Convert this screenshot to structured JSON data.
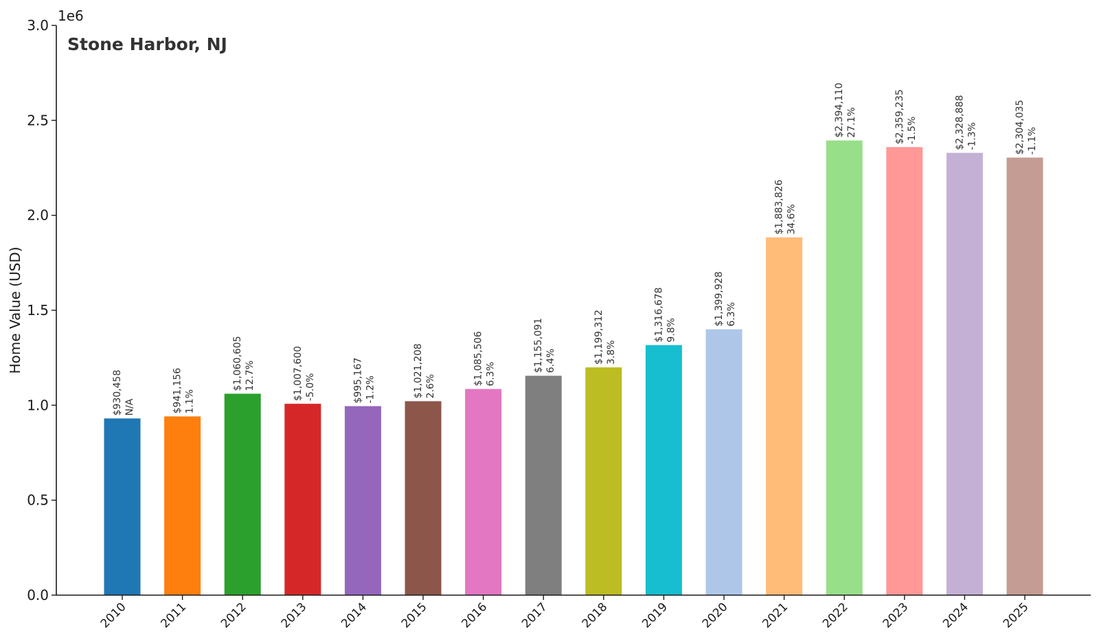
{
  "chart_data": {
    "type": "bar",
    "title": "Stone Harbor, NJ",
    "ylabel": "Home Value (USD)",
    "xlabel": "",
    "y_offset_label": "1e6",
    "ylim": [
      0,
      3000000
    ],
    "y_ticks": [
      0,
      500000,
      1000000,
      1500000,
      2000000,
      2500000,
      3000000
    ],
    "y_tick_labels": [
      "0.0",
      "0.5",
      "1.0",
      "1.5",
      "2.0",
      "2.5",
      "3.0"
    ],
    "grid": false,
    "categories": [
      "2010",
      "2011",
      "2012",
      "2013",
      "2014",
      "2015",
      "2016",
      "2017",
      "2018",
      "2019",
      "2020",
      "2021",
      "2022",
      "2023",
      "2024",
      "2025"
    ],
    "values": [
      930458,
      941156,
      1060605,
      1007600,
      995167,
      1021208,
      1085506,
      1155091,
      1199312,
      1316678,
      1399928,
      1883826,
      2394110,
      2359235,
      2328888,
      2304035
    ],
    "value_labels": [
      "$930,458",
      "$941,156",
      "$1,060,605",
      "$1,007,600",
      "$995,167",
      "$1,021,208",
      "$1,085,506",
      "$1,155,091",
      "$1,199,312",
      "$1,316,678",
      "$1,399,928",
      "$1,883,826",
      "$2,394,110",
      "$2,359,235",
      "$2,328,888",
      "$2,304,035"
    ],
    "change_labels": [
      "N/A",
      "1.1%",
      "12.7%",
      "-5.0%",
      "-1.2%",
      "2.6%",
      "6.3%",
      "6.4%",
      "3.8%",
      "9.8%",
      "6.3%",
      "34.6%",
      "27.1%",
      "-1.5%",
      "-1.3%",
      "-1.1%"
    ],
    "colors": [
      "#1f77b4",
      "#ff7f0e",
      "#2ca02c",
      "#d62728",
      "#9467bd",
      "#8c564b",
      "#e377c2",
      "#7f7f7f",
      "#bcbd22",
      "#17becf",
      "#aec7e8",
      "#ffbb78",
      "#98df8a",
      "#ff9896",
      "#c5b0d5",
      "#c49c94"
    ]
  }
}
